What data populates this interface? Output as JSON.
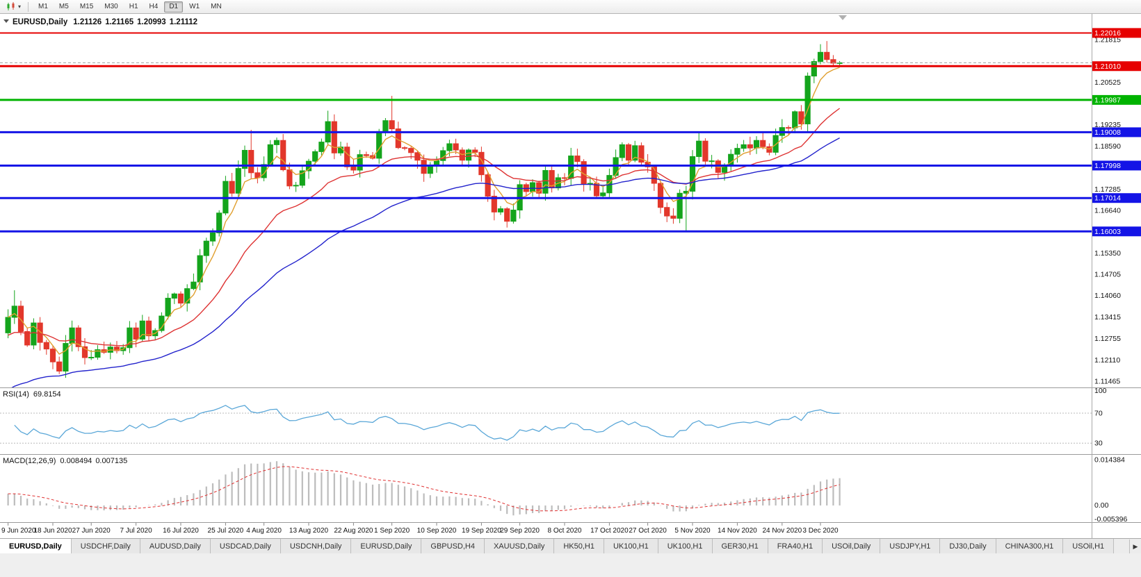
{
  "toolbar": {
    "chart_type_button": {
      "icon": "candlestick-chart-icon",
      "caret_icon": "chevron-down-icon"
    },
    "timeframes": [
      {
        "label": "M1",
        "active": false
      },
      {
        "label": "M5",
        "active": false
      },
      {
        "label": "M15",
        "active": false
      },
      {
        "label": "M30",
        "active": false
      },
      {
        "label": "H1",
        "active": false
      },
      {
        "label": "H4",
        "active": false
      },
      {
        "label": "D1",
        "active": true
      },
      {
        "label": "W1",
        "active": false
      },
      {
        "label": "MN",
        "active": false
      }
    ]
  },
  "chart": {
    "header": {
      "collapse_icon": "triangle-down-icon",
      "symbol": "EURUSD,Daily",
      "open": "1.21126",
      "high": "1.21165",
      "low": "1.20993",
      "close": "1.21112"
    }
  },
  "price_axis": {
    "tick_labels": [
      "1.21815",
      "1.20525",
      "1.19235",
      "1.18590",
      "1.17285",
      "1.16640",
      "1.15350",
      "1.14705",
      "1.14060",
      "1.13415",
      "1.12755",
      "1.12110",
      "1.11465"
    ]
  },
  "levels": [
    {
      "price": 1.22016,
      "label": "1.22016",
      "color": "#e60000",
      "width": 2
    },
    {
      "price": 1.2101,
      "label": "1.21010",
      "color": "#e60000",
      "width": 3
    },
    {
      "price": 1.19987,
      "label": "1.19987",
      "color": "#00b300",
      "width": 3
    },
    {
      "price": 1.19008,
      "label": "1.19008",
      "color": "#1414e6",
      "width": 3
    },
    {
      "price": 1.17998,
      "label": "1.17998",
      "color": "#1414e6",
      "width": 3
    },
    {
      "price": 1.17014,
      "label": "1.17014",
      "color": "#1414e6",
      "width": 3
    },
    {
      "price": 1.16003,
      "label": "1.16003",
      "color": "#1414e6",
      "width": 3
    }
  ],
  "bid_line": {
    "price": 1.21112,
    "color": "#a0a0a0"
  },
  "chart_data": {
    "type": "candlestick",
    "symbol": "EURUSD",
    "period": "Daily",
    "date_range": [
      "9 Jun 2020",
      "8 Dec 2020"
    ],
    "ylim": [
      1.111,
      1.2245
    ],
    "up_color": "#14a41c",
    "down_color": "#e2372b",
    "open_first": 1.1293,
    "closes": [
      1.134,
      1.1374,
      1.1297,
      1.1256,
      1.1323,
      1.1264,
      1.1244,
      1.1205,
      1.1177,
      1.1261,
      1.1308,
      1.1251,
      1.1218,
      1.1219,
      1.1242,
      1.1234,
      1.125,
      1.1239,
      1.1248,
      1.1308,
      1.1274,
      1.1329,
      1.1284,
      1.13,
      1.1344,
      1.1398,
      1.1411,
      1.1383,
      1.1427,
      1.1447,
      1.1527,
      1.1571,
      1.1596,
      1.1656,
      1.1752,
      1.1716,
      1.1791,
      1.1846,
      1.1778,
      1.1763,
      1.1803,
      1.1863,
      1.1876,
      1.1787,
      1.1738,
      1.174,
      1.1784,
      1.1813,
      1.1842,
      1.1871,
      1.1933,
      1.1838,
      1.1856,
      1.1796,
      1.1786,
      1.1833,
      1.183,
      1.1822,
      1.1903,
      1.1936,
      1.1911,
      1.1854,
      1.1852,
      1.1839,
      1.1816,
      1.1776,
      1.1801,
      1.1815,
      1.1845,
      1.1866,
      1.1847,
      1.1816,
      1.1847,
      1.184,
      1.1772,
      1.1707,
      1.1659,
      1.1669,
      1.1631,
      1.1665,
      1.1742,
      1.1721,
      1.1748,
      1.1716,
      1.1785,
      1.1732,
      1.1763,
      1.1761,
      1.1829,
      1.1812,
      1.1745,
      1.1746,
      1.1708,
      1.1717,
      1.177,
      1.1824,
      1.1863,
      1.1816,
      1.186,
      1.181,
      1.1796,
      1.1746,
      1.1673,
      1.1647,
      1.164,
      1.1716,
      1.1722,
      1.1827,
      1.1874,
      1.1813,
      1.1814,
      1.1779,
      1.1802,
      1.1834,
      1.1852,
      1.1863,
      1.1853,
      1.1876,
      1.1857,
      1.184,
      1.1891,
      1.1915,
      1.1914,
      1.1963,
      1.1926,
      1.2071,
      1.2115,
      1.2143,
      1.2121,
      1.211,
      1.21112
    ],
    "wick_overrides": {
      "1": {
        "h": 1.1422
      },
      "8": {
        "l": 1.1168
      },
      "38": {
        "h": 1.1908
      },
      "50": {
        "h": 1.1966
      },
      "60": {
        "h": 1.2011
      },
      "78": {
        "l": 1.1612
      },
      "106": {
        "l": 1.1603
      },
      "128": {
        "h": 1.2177
      },
      "130": {
        "h": 1.21165,
        "l": 1.20993
      }
    },
    "x_tick_labels": [
      {
        "label": "9 Jun 2020",
        "bar": 0
      },
      {
        "label": "18 Jun 2020",
        "bar": 7
      },
      {
        "label": "27 Jun 2020",
        "bar": 13
      },
      {
        "label": "7 Jul 2020",
        "bar": 20
      },
      {
        "label": "16 Jul 2020",
        "bar": 27
      },
      {
        "label": "25 Jul 2020",
        "bar": 34
      },
      {
        "label": "4 Aug 2020",
        "bar": 40
      },
      {
        "label": "13 Aug 2020",
        "bar": 47
      },
      {
        "label": "22 Aug 2020",
        "bar": 54
      },
      {
        "label": "1 Sep 2020",
        "bar": 60
      },
      {
        "label": "10 Sep 2020",
        "bar": 67
      },
      {
        "label": "19 Sep 2020",
        "bar": 74
      },
      {
        "label": "29 Sep 2020",
        "bar": 80
      },
      {
        "label": "8 Oct 2020",
        "bar": 87
      },
      {
        "label": "17 Oct 2020",
        "bar": 94
      },
      {
        "label": "27 Oct 2020",
        "bar": 100
      },
      {
        "label": "5 Nov 2020",
        "bar": 107
      },
      {
        "label": "14 Nov 2020",
        "bar": 114
      },
      {
        "label": "24 Nov 2020",
        "bar": 121
      },
      {
        "label": "3 Dec 2020",
        "bar": 127
      }
    ],
    "overlays": [
      {
        "name": "ma-fast",
        "type": "ema",
        "period": 5,
        "seed": 1.134,
        "color": "#e09f2f"
      },
      {
        "name": "ma-mid",
        "type": "ema",
        "period": 20,
        "seed": 1.128,
        "color": "#de3333"
      },
      {
        "name": "ma-slow",
        "type": "ema",
        "period": 45,
        "seed": 1.111,
        "color": "#2222cc"
      }
    ]
  },
  "rsi_panel": {
    "title": "RSI(14)",
    "value": "69.8154",
    "line_color": "#5aa7d8",
    "levels": [
      {
        "value": 100,
        "label": "100",
        "line": false
      },
      {
        "value": 70,
        "label": "70",
        "line": true
      },
      {
        "value": 30,
        "label": "30",
        "line": true
      }
    ]
  },
  "macd_panel": {
    "title": "MACD(12,26,9)",
    "main_value": "0.008494",
    "signal_value": "0.007135",
    "histogram_color": "#bcbcbc",
    "signal_color": "#e03030",
    "axis_labels": [
      {
        "value": 0.014384,
        "label": "0.014384"
      },
      {
        "value": 0,
        "label": "0.00"
      },
      {
        "value": -0.005396,
        "label": "-0.005396"
      }
    ]
  },
  "tab_bar": {
    "scroll_right_icon": "chevron-right-icon",
    "tabs": [
      {
        "label": "EURUSD,Daily",
        "active": true
      },
      {
        "label": "USDCHF,Daily"
      },
      {
        "label": "AUDUSD,Daily"
      },
      {
        "label": "USDCAD,Daily"
      },
      {
        "label": "USDCNH,Daily"
      },
      {
        "label": "EURUSD,Daily"
      },
      {
        "label": "GBPUSD,H4"
      },
      {
        "label": "XAUUSD,Daily"
      },
      {
        "label": "HK50,H1"
      },
      {
        "label": "UK100,H1"
      },
      {
        "label": "UK100,H1"
      },
      {
        "label": "GER30,H1"
      },
      {
        "label": "FRA40,H1"
      },
      {
        "label": "USOil,Daily"
      },
      {
        "label": "USDJPY,H1"
      },
      {
        "label": "DJ30,Daily"
      },
      {
        "label": "CHINA300,H1"
      },
      {
        "label": "USOil,H1"
      }
    ]
  }
}
